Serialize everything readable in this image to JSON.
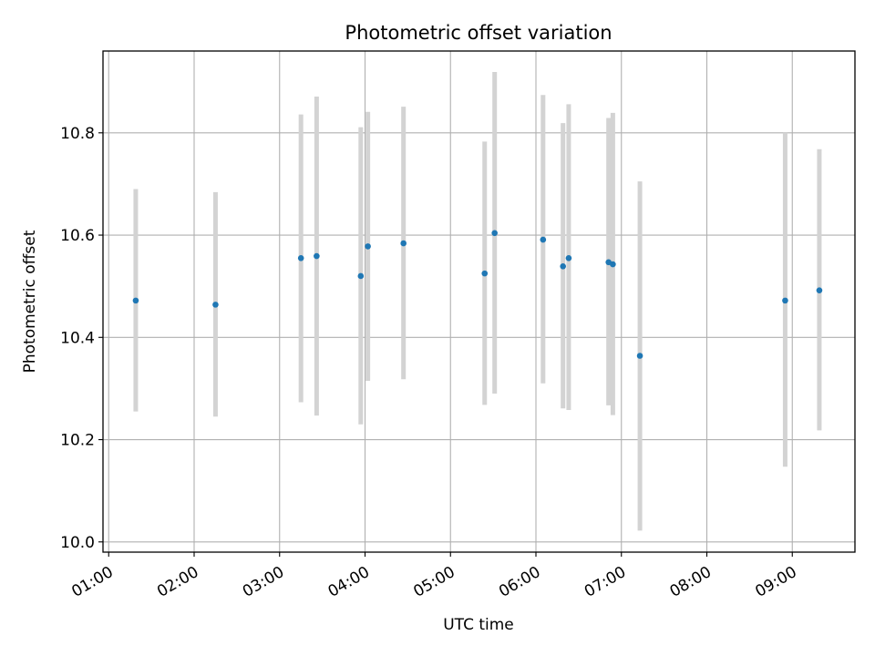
{
  "chart_data": {
    "type": "scatter",
    "title": "Photometric offset variation",
    "xlabel": "UTC time",
    "ylabel": "Photometric offset",
    "x_ticks": [
      "01:00",
      "02:00",
      "03:00",
      "04:00",
      "05:00",
      "06:00",
      "07:00",
      "08:00",
      "09:00"
    ],
    "y_ticks": [
      "10.0",
      "10.2",
      "10.4",
      "10.6",
      "10.8"
    ],
    "xlim": [
      "00:56",
      "09:44"
    ],
    "ylim": [
      9.98,
      10.96
    ],
    "grid": true,
    "colors": {
      "marker": "#1f77b4",
      "errorbar": "#d3d3d3",
      "grid": "#b0b0b0"
    },
    "points": [
      {
        "x": "01:19",
        "y": 10.472,
        "ylo": 10.255,
        "yhi": 10.69
      },
      {
        "x": "02:15",
        "y": 10.464,
        "ylo": 10.245,
        "yhi": 10.684
      },
      {
        "x": "03:15",
        "y": 10.555,
        "ylo": 10.273,
        "yhi": 10.836
      },
      {
        "x": "03:26",
        "y": 10.559,
        "ylo": 10.247,
        "yhi": 10.871
      },
      {
        "x": "03:57",
        "y": 10.52,
        "ylo": 10.23,
        "yhi": 10.811
      },
      {
        "x": "04:02",
        "y": 10.578,
        "ylo": 10.315,
        "yhi": 10.841
      },
      {
        "x": "04:27",
        "y": 10.584,
        "ylo": 10.318,
        "yhi": 10.851
      },
      {
        "x": "05:24",
        "y": 10.525,
        "ylo": 10.268,
        "yhi": 10.783
      },
      {
        "x": "05:31",
        "y": 10.604,
        "ylo": 10.29,
        "yhi": 10.919
      },
      {
        "x": "06:05",
        "y": 10.591,
        "ylo": 10.31,
        "yhi": 10.874
      },
      {
        "x": "06:19",
        "y": 10.539,
        "ylo": 10.261,
        "yhi": 10.819
      },
      {
        "x": "06:23",
        "y": 10.555,
        "ylo": 10.258,
        "yhi": 10.856
      },
      {
        "x": "06:51",
        "y": 10.547,
        "ylo": 10.267,
        "yhi": 10.829
      },
      {
        "x": "06:54",
        "y": 10.543,
        "ylo": 10.248,
        "yhi": 10.839
      },
      {
        "x": "07:13",
        "y": 10.364,
        "ylo": 10.022,
        "yhi": 10.705
      },
      {
        "x": "08:55",
        "y": 10.472,
        "ylo": 10.147,
        "yhi": 10.8
      },
      {
        "x": "09:19",
        "y": 10.492,
        "ylo": 10.218,
        "yhi": 10.768
      }
    ]
  }
}
